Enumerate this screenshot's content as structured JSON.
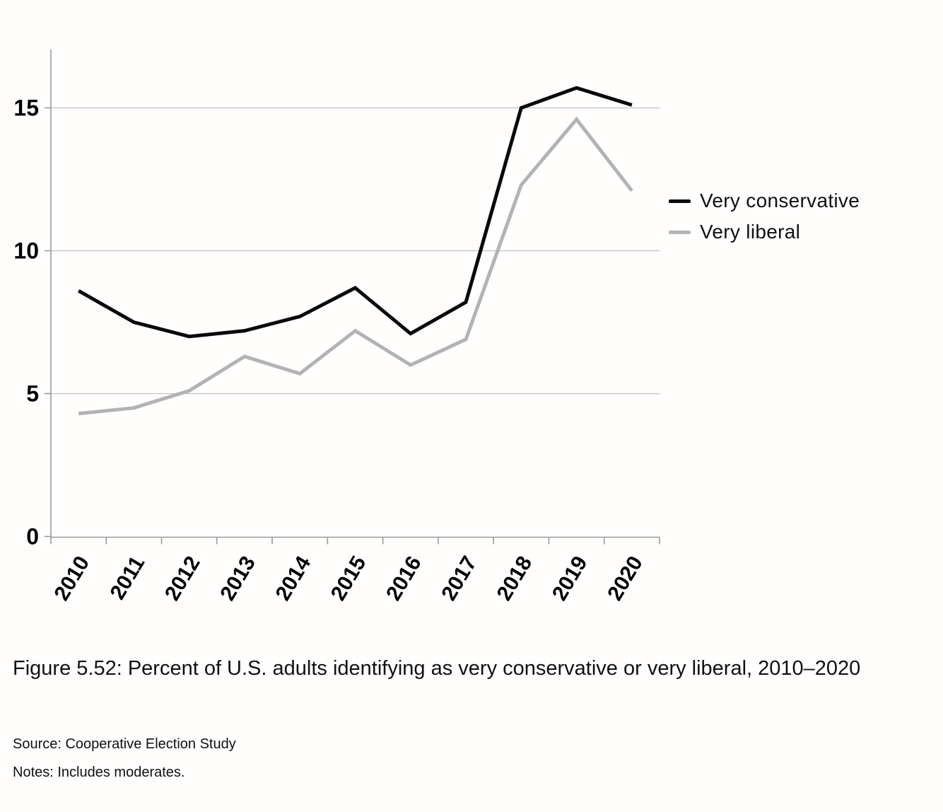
{
  "chart_data": {
    "type": "line",
    "categories": [
      "2010",
      "2011",
      "2012",
      "2013",
      "2014",
      "2015",
      "2016",
      "2017",
      "2018",
      "2019",
      "2020"
    ],
    "series": [
      {
        "name": "Very conservative",
        "color": "#0a0a0a",
        "values": [
          8.6,
          7.5,
          7.0,
          7.2,
          7.7,
          8.7,
          7.1,
          8.2,
          15.0,
          15.7,
          15.1
        ]
      },
      {
        "name": "Very liberal",
        "color": "#b3b3b3",
        "values": [
          4.3,
          4.5,
          5.1,
          6.3,
          5.7,
          7.2,
          6.0,
          6.9,
          12.3,
          14.6,
          12.1
        ]
      }
    ],
    "title": "",
    "xlabel": "",
    "ylabel": "",
    "yticks": [
      0,
      5,
      10,
      15
    ],
    "ylim": [
      0,
      17
    ],
    "grid": "horizontal",
    "legend_position": "right",
    "colors": {
      "grid": "#c2c2c2",
      "axis": "#9a9a9a"
    }
  },
  "caption": {
    "text": "Figure 5.52: Percent of U.S. adults identifying as very conservative or very liberal, 2010–2020"
  },
  "source": {
    "text": "Source: Cooperative Election Study"
  },
  "notes": {
    "text": "Notes: Includes moderates."
  }
}
